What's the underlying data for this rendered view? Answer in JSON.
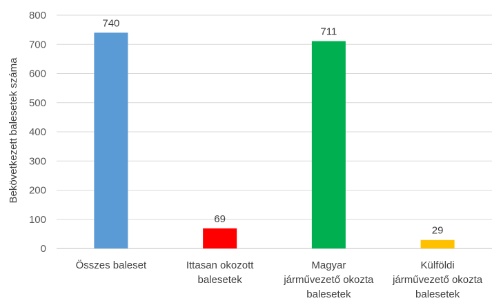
{
  "chart_data": {
    "type": "bar",
    "title": "",
    "xlabel": "",
    "ylabel": "Bekövetkezett balesetek száma",
    "ylim": [
      0,
      800
    ],
    "yticks": [
      0,
      100,
      200,
      300,
      400,
      500,
      600,
      700,
      800
    ],
    "grid": true,
    "legend": "none",
    "categories": [
      [
        "Összes baleset"
      ],
      [
        "Ittasan okozott",
        "balesetek"
      ],
      [
        "Magyar",
        "járművezető okozta",
        "balesetek"
      ],
      [
        "Külföldi",
        "járművezető okozta",
        "balesetek"
      ]
    ],
    "values": [
      740,
      69,
      711,
      29
    ],
    "data_labels": [
      "740",
      "69",
      "711",
      "29"
    ],
    "colors": [
      "#5b9bd5",
      "#ff0000",
      "#00b050",
      "#ffc000"
    ]
  }
}
